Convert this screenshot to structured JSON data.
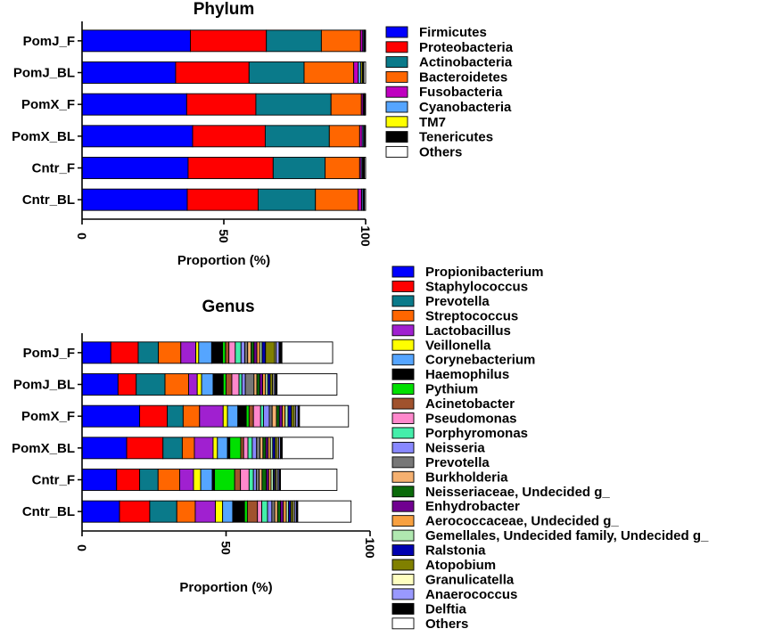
{
  "chart_data": [
    {
      "type": "bar",
      "orientation": "horizontal",
      "stacked": true,
      "title": "Phylum",
      "xlabel": "Proportion (%)",
      "xlim": [
        0,
        100
      ],
      "xticks": [
        "0",
        "50",
        "100"
      ],
      "categories": [
        "PomJ_F",
        "PomJ_BL",
        "PomX_F",
        "PomX_BL",
        "Cntr_F",
        "Cntr_BL"
      ],
      "legend_position": "right",
      "series": [
        {
          "name": "Firmicutes",
          "color": "#0000FF",
          "values": [
            38.2,
            33.0,
            36.9,
            39.0,
            37.4,
            37.1
          ]
        },
        {
          "name": "Proteobacteria",
          "color": "#FF0000",
          "values": [
            26.8,
            25.9,
            24.4,
            25.6,
            30.0,
            25.0
          ]
        },
        {
          "name": "Actinobacteria",
          "color": "#0A7A8A",
          "values": [
            19.4,
            19.4,
            26.5,
            22.6,
            18.3,
            20.2
          ]
        },
        {
          "name": "Bacteroidetes",
          "color": "#FF6600",
          "values": [
            13.8,
            17.5,
            10.7,
            10.7,
            12.2,
            15.0
          ]
        },
        {
          "name": "Fusobacteria",
          "color": "#C000C0",
          "values": [
            0.8,
            1.6,
            0.6,
            0.9,
            0.6,
            1.3
          ]
        },
        {
          "name": "Cyanobacteria",
          "color": "#55A5FF",
          "values": [
            0.4,
            0.9,
            0.3,
            0.5,
            0.4,
            0.5
          ]
        },
        {
          "name": "TM7",
          "color": "#FFFF00",
          "values": [
            0.2,
            0.5,
            0.2,
            0.3,
            0.3,
            0.2
          ]
        },
        {
          "name": "Tenericutes",
          "color": "#000000",
          "values": [
            0.2,
            0.6,
            0.2,
            0.2,
            0.4,
            0.3
          ]
        },
        {
          "name": "Others",
          "color": "#FFFFFF",
          "values": [
            0.2,
            0.6,
            0.2,
            0.2,
            0.4,
            0.4
          ]
        }
      ]
    },
    {
      "type": "bar",
      "orientation": "horizontal",
      "stacked": true,
      "title": "Genus",
      "xlabel": "Proportion (%)",
      "xlim": [
        0,
        100
      ],
      "xticks": [
        "0",
        "50",
        "100"
      ],
      "categories": [
        "PomJ_F",
        "PomJ_BL",
        "PomX_F",
        "PomX_BL",
        "Cntr_F",
        "Cntr_BL"
      ],
      "legend_position": "right",
      "series": [
        {
          "name": "Propionibacterium",
          "color": "#0000FF",
          "values": [
            10.0,
            12.5,
            20.0,
            15.5,
            12.0,
            13.0
          ]
        },
        {
          "name": "Staphylococcus",
          "color": "#FF0000",
          "values": [
            9.5,
            6.3,
            9.6,
            12.6,
            8.0,
            10.5
          ]
        },
        {
          "name": "Prevotella",
          "color": "#0A7A8A",
          "values": [
            7.0,
            10.0,
            5.5,
            6.7,
            6.4,
            9.4
          ]
        },
        {
          "name": "Streptococcus",
          "color": "#FF6600",
          "values": [
            7.8,
            8.2,
            5.7,
            4.2,
            7.5,
            6.4
          ]
        },
        {
          "name": "Lactobacillus",
          "color": "#A020D0",
          "values": [
            5.2,
            3.0,
            8.2,
            6.5,
            4.8,
            7.0
          ]
        },
        {
          "name": "Veillonella",
          "color": "#FFFF00",
          "values": [
            1.0,
            1.5,
            1.5,
            1.5,
            2.5,
            2.5
          ]
        },
        {
          "name": "Corynebacterium",
          "color": "#55A5FF",
          "values": [
            4.5,
            4.0,
            3.6,
            3.5,
            4.0,
            3.5
          ]
        },
        {
          "name": "Haemophilus",
          "color": "#000000",
          "values": [
            3.8,
            3.5,
            2.9,
            0.8,
            0.8,
            4.1
          ]
        },
        {
          "name": "Pythium",
          "color": "#00E000",
          "values": [
            1.0,
            1.0,
            1.0,
            3.8,
            7.0,
            1.0
          ]
        },
        {
          "name": "Acinetobacter",
          "color": "#A0522D",
          "values": [
            1.2,
            2.0,
            1.5,
            1.0,
            2.0,
            3.5
          ]
        },
        {
          "name": "Pseudomonas",
          "color": "#FF88CC",
          "values": [
            2.2,
            2.5,
            2.5,
            1.5,
            3.0,
            1.5
          ]
        },
        {
          "name": "Porphyromonas",
          "color": "#44EEAA",
          "values": [
            2.0,
            1.0,
            1.0,
            1.5,
            1.5,
            2.0
          ]
        },
        {
          "name": "Neisseria",
          "color": "#8888FF",
          "values": [
            1.3,
            1.2,
            2.0,
            1.5,
            1.0,
            1.5
          ]
        },
        {
          "name": "Prevotella",
          "color": "#777777",
          "values": [
            1.0,
            3.0,
            1.0,
            1.2,
            1.0,
            1.0
          ]
        },
        {
          "name": "Burkholderia",
          "color": "#F5B070",
          "values": [
            1.2,
            1.0,
            1.5,
            1.0,
            1.0,
            1.0
          ]
        },
        {
          "name": "Neisseriaceae, Undecided g_",
          "color": "#0A6A0A",
          "values": [
            1.0,
            1.0,
            1.0,
            1.0,
            1.5,
            1.0
          ]
        },
        {
          "name": "Enhydrobacter",
          "color": "#700090",
          "values": [
            1.0,
            1.0,
            1.0,
            0.8,
            0.8,
            1.0
          ]
        },
        {
          "name": "Aerococcaceae, Undecided g_",
          "color": "#F8A040",
          "values": [
            1.0,
            1.0,
            1.0,
            0.8,
            0.8,
            1.0
          ]
        },
        {
          "name": "Gemellales, Undecided family, Undecided g_",
          "color": "#B0E8B0",
          "values": [
            0.8,
            0.8,
            1.0,
            0.8,
            0.8,
            0.8
          ]
        },
        {
          "name": "Ralstonia",
          "color": "#0000B0",
          "values": [
            1.2,
            0.8,
            1.2,
            0.8,
            0.5,
            0.8
          ]
        },
        {
          "name": "Atopobium",
          "color": "#808000",
          "values": [
            3.2,
            0.8,
            1.0,
            0.8,
            0.5,
            0.8
          ]
        },
        {
          "name": "Granulicatella",
          "color": "#FFFFC0",
          "values": [
            0.5,
            0.5,
            0.5,
            0.5,
            0.5,
            0.5
          ]
        },
        {
          "name": "Anaerococcus",
          "color": "#9999FF",
          "values": [
            1.0,
            0.5,
            0.8,
            0.6,
            0.5,
            0.6
          ]
        },
        {
          "name": "Delftia",
          "color": "#000000",
          "values": [
            1.0,
            0.6,
            0.5,
            0.6,
            0.5,
            0.5
          ]
        },
        {
          "name": "Others",
          "color": "#FFFFFF",
          "values": [
            17.6,
            20.8,
            17.0,
            17.6,
            19.6,
            18.5
          ]
        }
      ]
    }
  ]
}
